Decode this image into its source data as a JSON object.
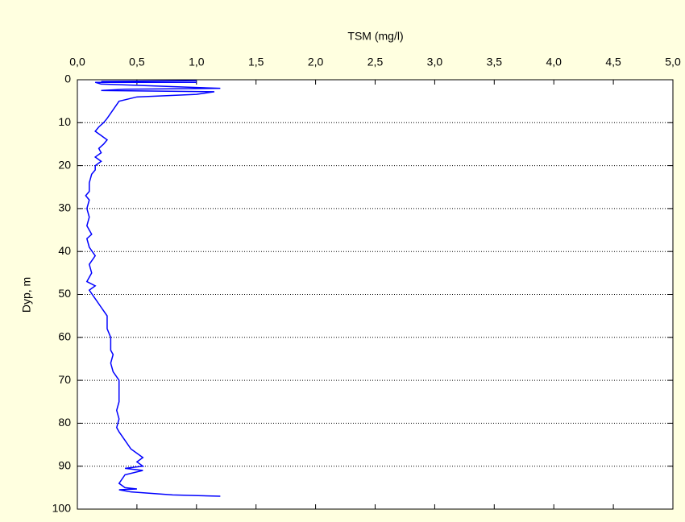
{
  "chart_data": {
    "type": "line",
    "title": "TSM (mg/l)",
    "y_label": "Dyp, m",
    "xlim": [
      0,
      5
    ],
    "xticks": [
      {
        "value": 0,
        "label": "0,0"
      },
      {
        "value": 0.5,
        "label": "0,5"
      },
      {
        "value": 1,
        "label": "1,0"
      },
      {
        "value": 1.5,
        "label": "1,5"
      },
      {
        "value": 2,
        "label": "2,0"
      },
      {
        "value": 2.5,
        "label": "2,5"
      },
      {
        "value": 3,
        "label": "3,0"
      },
      {
        "value": 3.5,
        "label": "3,5"
      },
      {
        "value": 4,
        "label": "4,0"
      },
      {
        "value": 4.5,
        "label": "4,5"
      },
      {
        "value": 5,
        "label": "5,0"
      }
    ],
    "ylim": [
      0,
      100
    ],
    "yticks": [
      0,
      10,
      20,
      30,
      40,
      50,
      60,
      70,
      80,
      90,
      100
    ],
    "y_inverted": true,
    "grid": true,
    "series": [
      {
        "color": "#0000ff",
        "x": [
          1.0,
          0.2,
          1.0,
          0.15,
          0.2,
          1.2,
          0.4,
          0.2,
          1.15,
          1.0,
          0.5,
          0.35,
          0.3,
          0.25,
          0.22,
          0.18,
          0.15,
          0.2,
          0.25,
          0.22,
          0.18,
          0.2,
          0.15,
          0.2,
          0.15,
          0.15,
          0.12,
          0.1,
          0.1,
          0.07,
          0.1,
          0.08,
          0.1,
          0.08,
          0.12,
          0.08,
          0.1,
          0.15,
          0.1,
          0.12,
          0.08,
          0.15,
          0.1,
          0.15,
          0.2,
          0.25,
          0.25,
          0.28,
          0.28,
          0.3,
          0.28,
          0.3,
          0.35,
          0.35,
          0.33,
          0.35,
          0.33,
          0.35,
          0.4,
          0.45,
          0.55,
          0.5,
          0.55,
          0.4,
          0.55,
          0.4,
          0.35,
          0.4,
          0.5,
          0.35,
          0.45,
          0.8,
          1.2
        ],
        "values": [
          0.2,
          0.4,
          0.6,
          0.6,
          1,
          2,
          2.2,
          2.5,
          2.8,
          3.4,
          4,
          5,
          7,
          9,
          10,
          11,
          12,
          13,
          14,
          15,
          16,
          17,
          18,
          19,
          20,
          21,
          22,
          24,
          26,
          27,
          28,
          30,
          32,
          34,
          36,
          37,
          39,
          41,
          43,
          45,
          47,
          48,
          49,
          51,
          53,
          55,
          58,
          60,
          63,
          64,
          66,
          68,
          70,
          75,
          77,
          79,
          81,
          82,
          84,
          86,
          88,
          89,
          90,
          90.5,
          91,
          92,
          94,
          95,
          95.3,
          95.5,
          96,
          96.7,
          97
        ]
      }
    ]
  }
}
